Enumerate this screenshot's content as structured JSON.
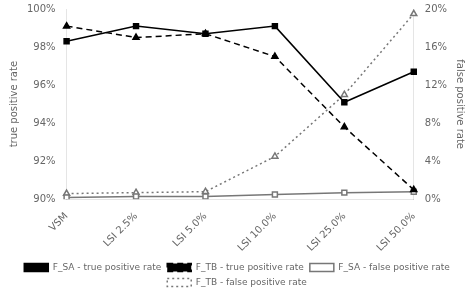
{
  "chart_data": {
    "type": "line",
    "categories": [
      "VSM",
      "LSI 2.5%",
      "LSI 5.0%",
      "LSI 10.0%",
      "LSI 25.0%",
      "LSI 50.0%"
    ],
    "series": [
      {
        "name": "F_SA - true positive rate",
        "color": "#000000",
        "marker": "square",
        "line_style": "solid",
        "axis": "y",
        "values": [
          98.3,
          99.1,
          98.7,
          99.1,
          95.1,
          96.7
        ]
      },
      {
        "name": "F_TB - true positive rate",
        "color": "#000000",
        "marker": "triangle",
        "line_style": "dashed",
        "axis": "y",
        "values": [
          99.1,
          98.5,
          98.7,
          97.5,
          93.8,
          90.5
        ]
      },
      {
        "name": "F_SA - false positive rate",
        "color": "#777777",
        "marker": "square",
        "line_style": "solid",
        "axis": "y2",
        "values": [
          0.2,
          0.3,
          0.3,
          0.5,
          0.7,
          0.8
        ]
      },
      {
        "name": "F_TB - false positive rate",
        "color": "#777777",
        "marker": "triangle",
        "line_style": "dotted",
        "axis": "y2",
        "values": [
          0.6,
          0.7,
          0.8,
          4.5,
          11.0,
          19.5
        ]
      }
    ],
    "ylabel": "true positive rate",
    "y2label": "false positive rate",
    "ylim": [
      90,
      100
    ],
    "yticks": [
      {
        "value": 90,
        "label": "90%"
      },
      {
        "value": 92,
        "label": "92%"
      },
      {
        "value": 94,
        "label": "94%"
      },
      {
        "value": 96,
        "label": "96%"
      },
      {
        "value": 98,
        "label": "98%"
      },
      {
        "value": 100,
        "label": "100%"
      }
    ],
    "y2lim": [
      0,
      20
    ],
    "y2ticks": [
      {
        "value": 0,
        "label": "0%"
      },
      {
        "value": 4,
        "label": "4%"
      },
      {
        "value": 8,
        "label": "8%"
      },
      {
        "value": 12,
        "label": "12%"
      },
      {
        "value": 16,
        "label": "16%"
      },
      {
        "value": 20,
        "label": "20%"
      }
    ],
    "grid": false,
    "legend": "bottom"
  }
}
